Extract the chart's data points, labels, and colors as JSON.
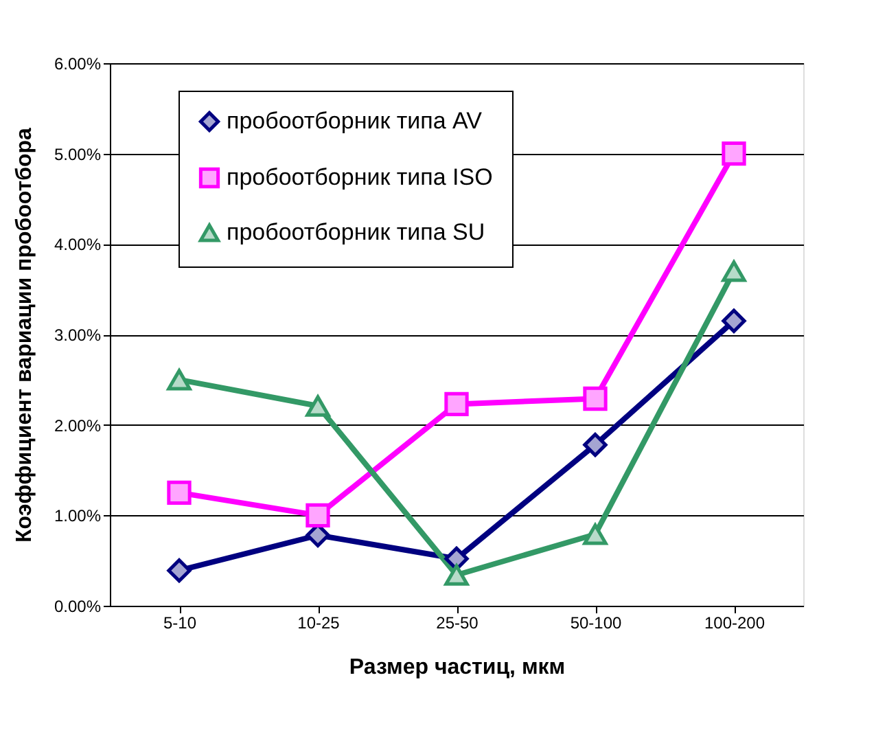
{
  "chart_data": {
    "type": "line",
    "xlabel": "Размер частиц, мкм",
    "ylabel": "Коэффициент вариации пробоотбора",
    "categories": [
      "5-10",
      "10-25",
      "25-50",
      "50-100",
      "100-200"
    ],
    "series": [
      {
        "name": "пробоотборник типа AV",
        "color": "#000080",
        "marker": "diamond",
        "values": [
          0.39,
          0.78,
          0.52,
          1.78,
          3.15
        ]
      },
      {
        "name": "пробоотборник типа ISO",
        "color": "#ff00ff",
        "marker": "square",
        "values": [
          1.25,
          1.0,
          2.23,
          2.29,
          5.0
        ]
      },
      {
        "name": "пробоотборник типа SU",
        "color": "#339966",
        "marker": "triangle",
        "values": [
          2.5,
          2.21,
          0.34,
          0.79,
          3.7
        ]
      }
    ],
    "ylim": [
      0,
      6
    ],
    "yticks": [
      {
        "value": 0,
        "label": "0.00%"
      },
      {
        "value": 1,
        "label": "1.00%"
      },
      {
        "value": 2,
        "label": "2.00%"
      },
      {
        "value": 3,
        "label": "3.00%"
      },
      {
        "value": 4,
        "label": "4.00%"
      },
      {
        "value": 5,
        "label": "5.00%"
      },
      {
        "value": 6,
        "label": "6.00%"
      }
    ],
    "grid": "y",
    "legend": "top left",
    "line_style": "solid"
  }
}
